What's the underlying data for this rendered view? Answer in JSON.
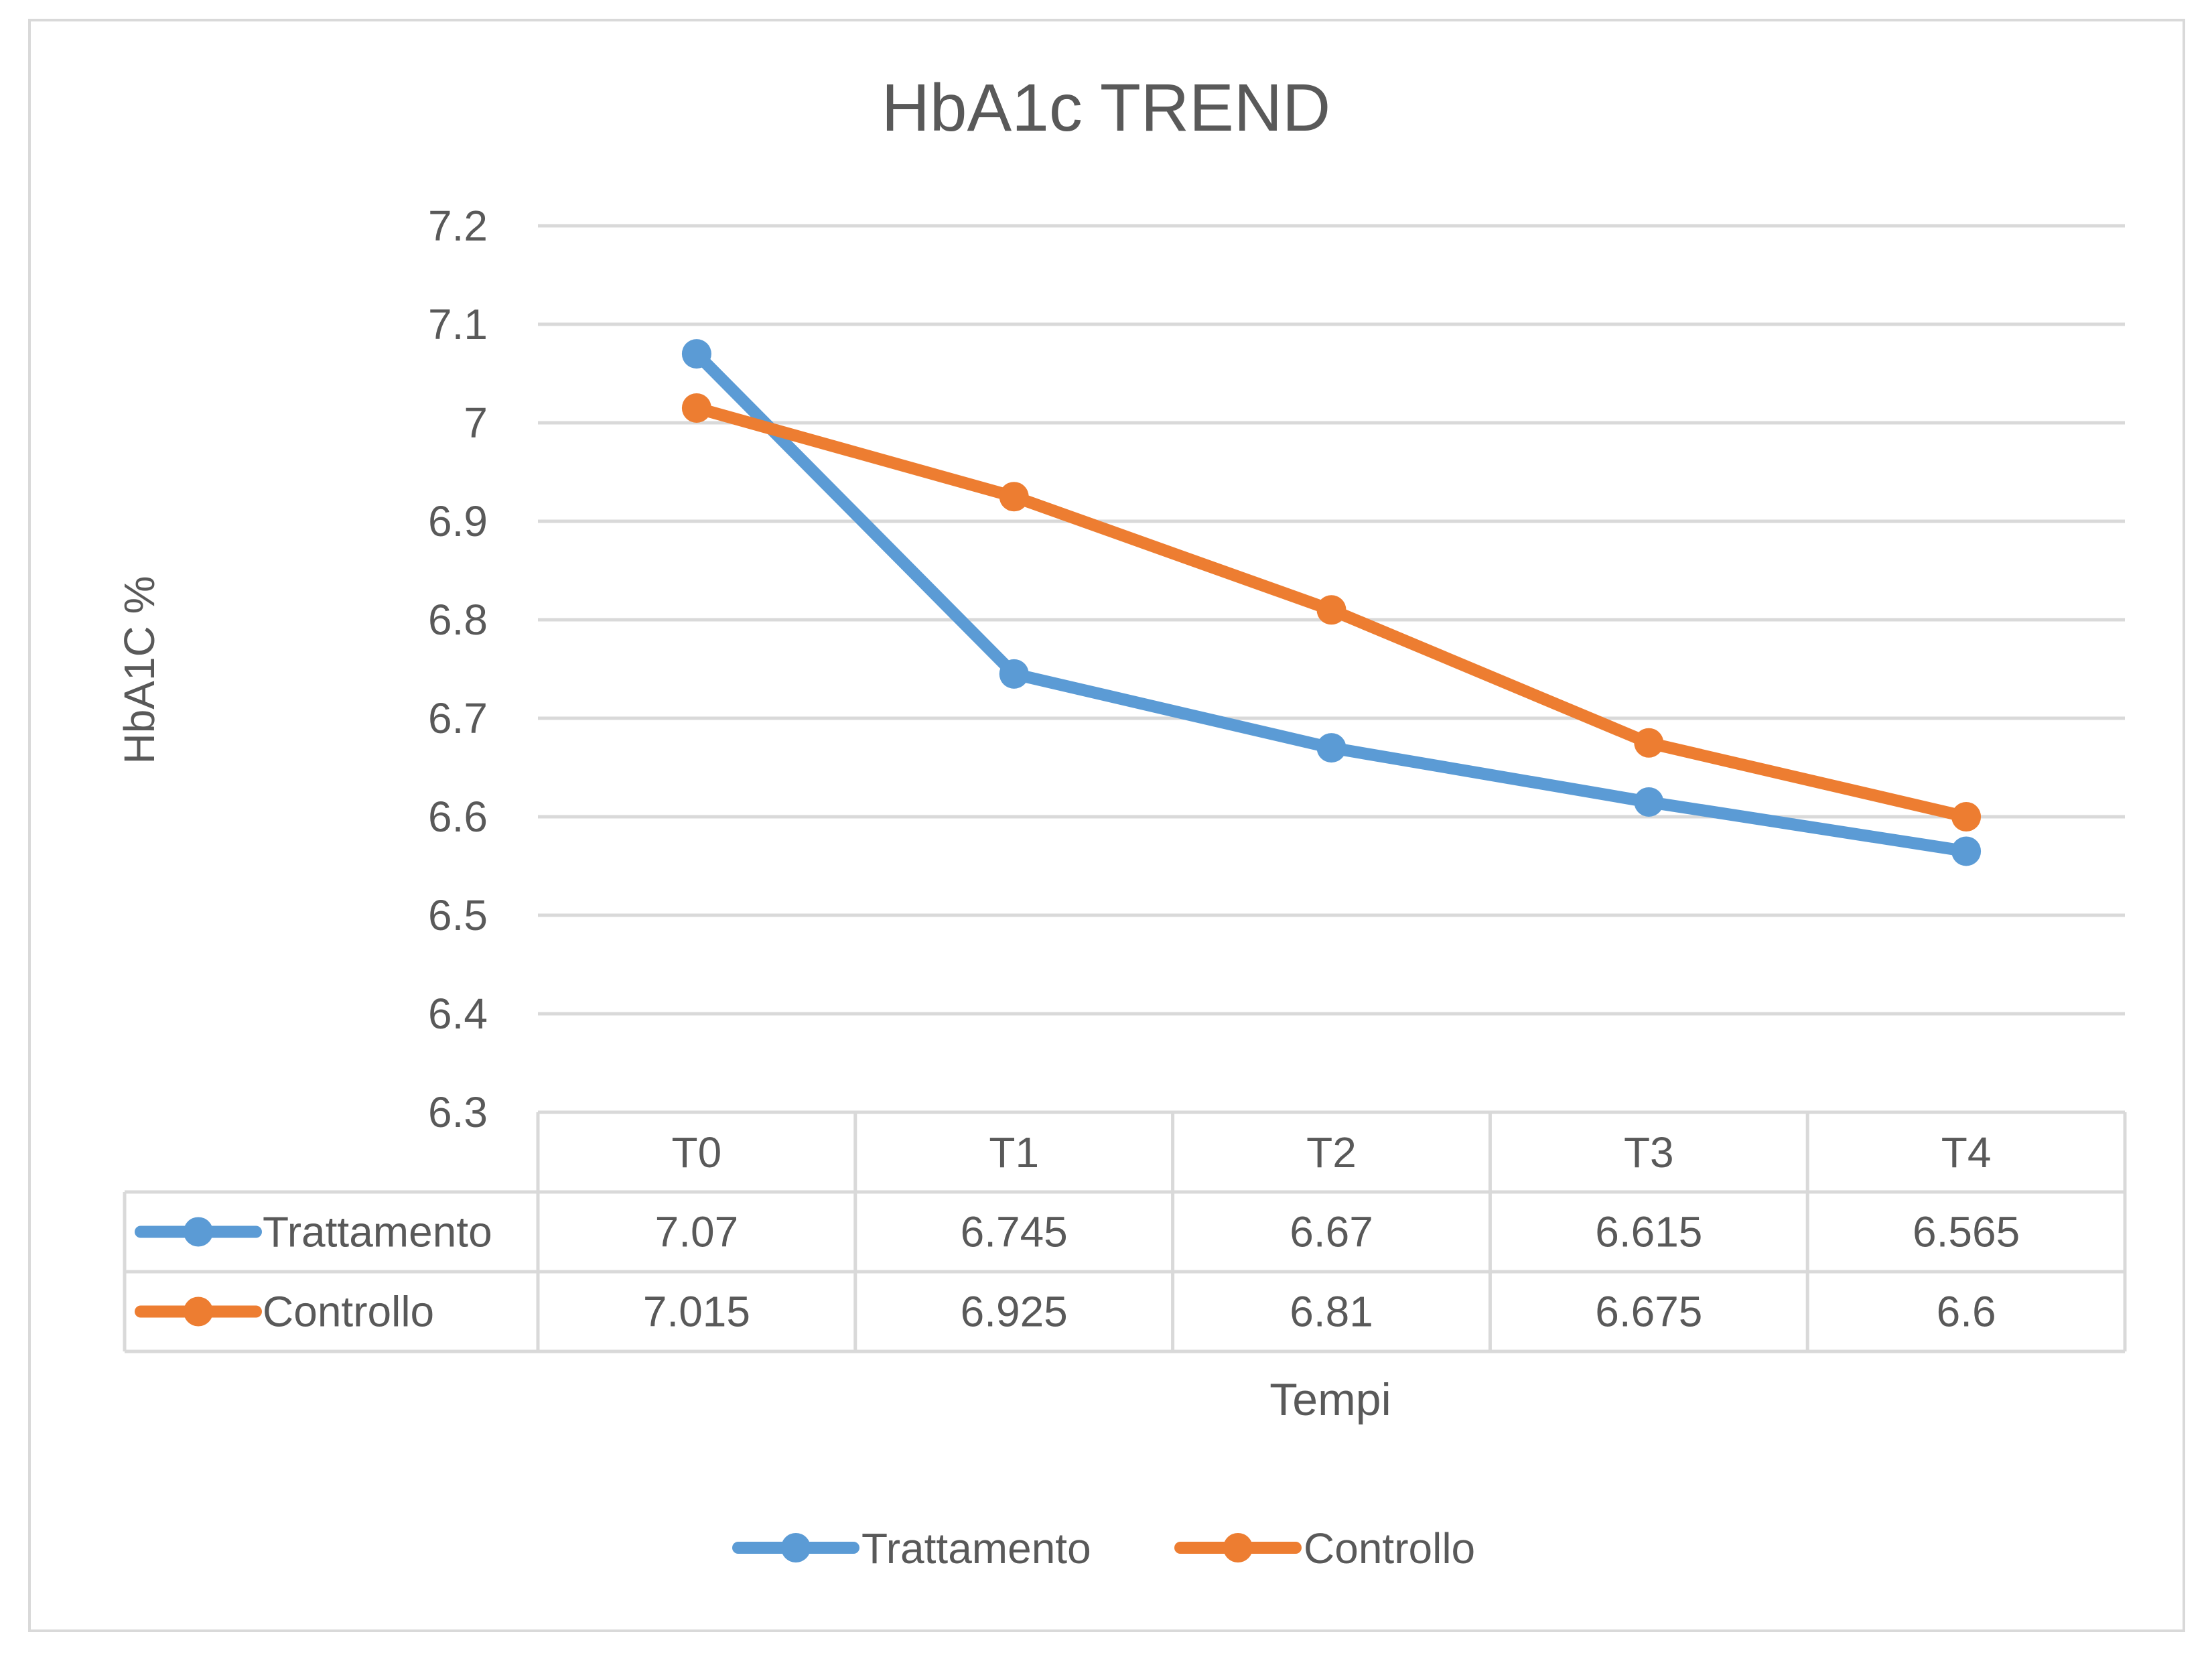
{
  "chart_data": {
    "type": "line",
    "title": "HbA1c TREND",
    "xlabel": "Tempi",
    "ylabel": "HbA1C %",
    "categories": [
      "T0",
      "T1",
      "T2",
      "T3",
      "T4"
    ],
    "ylim": [
      6.3,
      7.2
    ],
    "yticks": [
      "7.2",
      "7.1",
      "7",
      "6.9",
      "6.8",
      "6.7",
      "6.6",
      "6.5",
      "6.4",
      "6.3"
    ],
    "grid": true,
    "legend_position": "bottom",
    "data_table": true,
    "series": [
      {
        "name": "Trattamento",
        "color": "#5B9BD5",
        "values": [
          7.07,
          6.745,
          6.67,
          6.615,
          6.565
        ],
        "labels": [
          "7.07",
          "6.745",
          "6.67",
          "6.615",
          "6.565"
        ]
      },
      {
        "name": "Controllo",
        "color": "#ED7D31",
        "values": [
          7.015,
          6.925,
          6.81,
          6.675,
          6.6
        ],
        "labels": [
          "7.015",
          "6.925",
          "6.81",
          "6.675",
          "6.6"
        ]
      }
    ]
  }
}
